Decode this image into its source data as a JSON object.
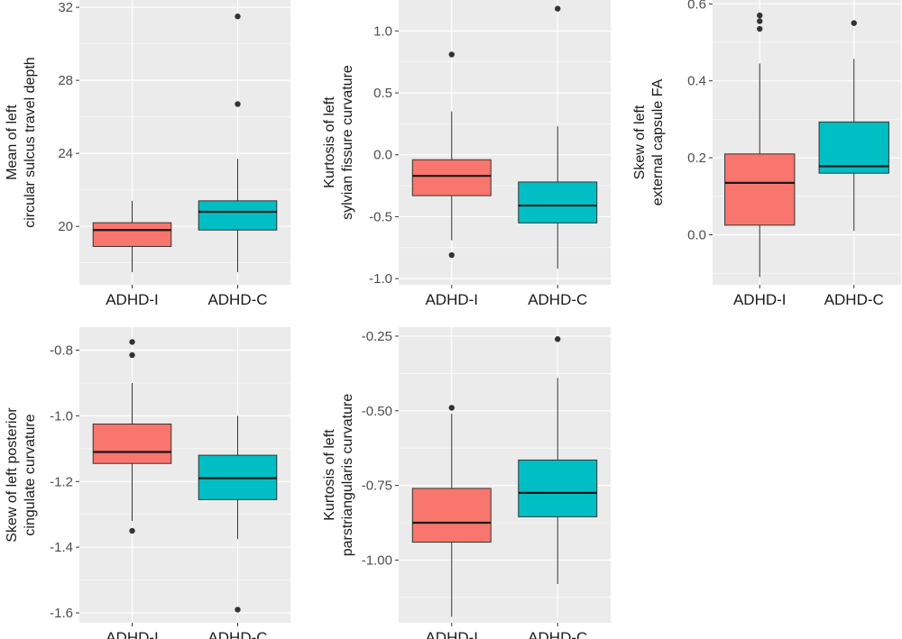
{
  "colors": {
    "ADHD-I": "#F8766D",
    "ADHD-C": "#00BFC4",
    "panel": "#EBEBEB",
    "grid": "#FFFFFF",
    "outlier": "#333333"
  },
  "chart_data": [
    {
      "type": "boxplot",
      "ylabel_lines": [
        "Mean of left",
        "circular sulcus travel depth"
      ],
      "categories": [
        "ADHD-I",
        "ADHD-C"
      ],
      "ylim": [
        16.8,
        32.4
      ],
      "yticks": [
        20,
        24,
        28,
        32
      ],
      "ytick_labels": [
        "20",
        "24",
        "28",
        "32"
      ],
      "boxes": [
        {
          "name": "ADHD-I",
          "whisker_low": 17.5,
          "q1": 18.9,
          "median": 19.8,
          "q3": 20.2,
          "whisker_high": 21.4,
          "outliers": []
        },
        {
          "name": "ADHD-C",
          "whisker_low": 17.5,
          "q1": 19.8,
          "median": 20.8,
          "q3": 21.4,
          "whisker_high": 23.7,
          "outliers": [
            26.7,
            31.5
          ]
        }
      ]
    },
    {
      "type": "boxplot",
      "ylabel_lines": [
        "Kurtosis of left",
        "sylvian fissure curvature"
      ],
      "categories": [
        "ADHD-I",
        "ADHD-C"
      ],
      "ylim": [
        -1.05,
        1.25
      ],
      "yticks": [
        -1.0,
        -0.5,
        0.0,
        0.5,
        1.0
      ],
      "ytick_labels": [
        "-1.0",
        "-0.5",
        "0.0",
        "0.5",
        "1.0"
      ],
      "boxes": [
        {
          "name": "ADHD-I",
          "whisker_low": -0.69,
          "q1": -0.33,
          "median": -0.17,
          "q3": -0.04,
          "whisker_high": 0.35,
          "outliers": [
            0.81,
            -0.81
          ]
        },
        {
          "name": "ADHD-C",
          "whisker_low": -0.92,
          "q1": -0.55,
          "median": -0.41,
          "q3": -0.22,
          "whisker_high": 0.23,
          "outliers": [
            1.18
          ]
        }
      ]
    },
    {
      "type": "boxplot",
      "ylabel_lines": [
        "Skew of left",
        "external capsule FA"
      ],
      "categories": [
        "ADHD-I",
        "ADHD-C"
      ],
      "ylim": [
        -0.13,
        0.61
      ],
      "yticks": [
        0.0,
        0.2,
        0.4,
        0.6
      ],
      "ytick_labels": [
        "0.0",
        "0.2",
        "0.4",
        "0.6"
      ],
      "boxes": [
        {
          "name": "ADHD-I",
          "whisker_low": -0.11,
          "q1": 0.025,
          "median": 0.135,
          "q3": 0.21,
          "whisker_high": 0.445,
          "outliers": [
            0.57,
            0.555,
            0.535
          ]
        },
        {
          "name": "ADHD-C",
          "whisker_low": 0.01,
          "q1": 0.16,
          "median": 0.178,
          "q3": 0.293,
          "whisker_high": 0.457,
          "outliers": [
            0.55
          ]
        }
      ]
    },
    {
      "type": "boxplot",
      "ylabel_lines": [
        "Skew of left posterior",
        "cingulate curvature"
      ],
      "categories": [
        "ADHD-I",
        "ADHD-C"
      ],
      "ylim": [
        -1.63,
        -0.73
      ],
      "yticks": [
        -1.6,
        -1.4,
        -1.2,
        -1.0,
        -0.8
      ],
      "ytick_labels": [
        "-1.6",
        "-1.4",
        "-1.2",
        "-1.0",
        "-0.8"
      ],
      "boxes": [
        {
          "name": "ADHD-I",
          "whisker_low": -1.32,
          "q1": -1.145,
          "median": -1.11,
          "q3": -1.025,
          "whisker_high": -0.9,
          "outliers": [
            -0.775,
            -0.815,
            -1.35
          ]
        },
        {
          "name": "ADHD-C",
          "whisker_low": -1.375,
          "q1": -1.255,
          "median": -1.19,
          "q3": -1.12,
          "whisker_high": -1.0,
          "outliers": [
            -1.59
          ]
        }
      ]
    },
    {
      "type": "boxplot",
      "ylabel_lines": [
        "Kurtosis of left",
        "parstriangularis curvature"
      ],
      "categories": [
        "ADHD-I",
        "ADHD-C"
      ],
      "ylim": [
        -1.21,
        -0.22
      ],
      "yticks": [
        -1.0,
        -0.75,
        -0.5,
        -0.25
      ],
      "ytick_labels": [
        "-1.00",
        "-0.75",
        "-0.50",
        "-0.25"
      ],
      "boxes": [
        {
          "name": "ADHD-I",
          "whisker_low": -1.19,
          "q1": -0.94,
          "median": -0.875,
          "q3": -0.76,
          "whisker_high": -0.51,
          "outliers": [
            -0.49
          ]
        },
        {
          "name": "ADHD-C",
          "whisker_low": -1.08,
          "q1": -0.855,
          "median": -0.775,
          "q3": -0.665,
          "whisker_high": -0.39,
          "outliers": [
            -0.26
          ]
        }
      ]
    }
  ]
}
